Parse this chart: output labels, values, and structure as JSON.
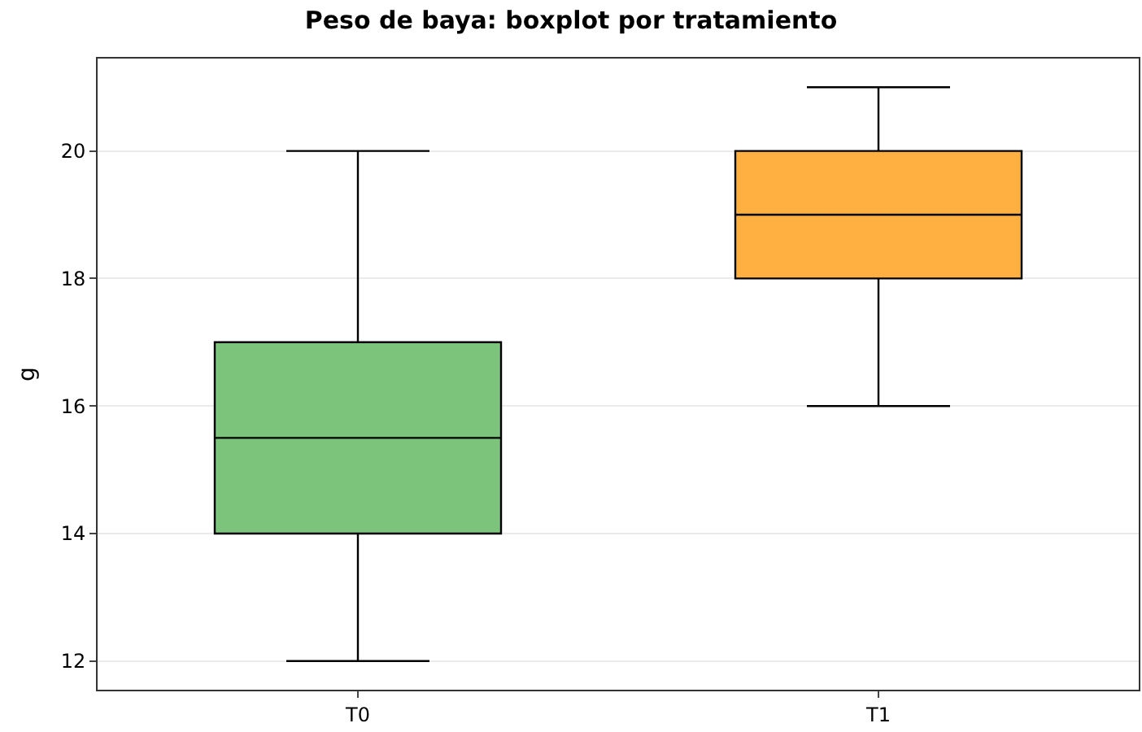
{
  "chart_data": {
    "type": "box",
    "title": "Peso de baya: boxplot por tratamiento",
    "ylabel": "g",
    "categories": [
      "T0",
      "T1"
    ],
    "boxes": [
      {
        "low": 12,
        "q1": 14,
        "median": 15.5,
        "q3": 17,
        "high": 20
      },
      {
        "low": 16,
        "q1": 18,
        "median": 19,
        "q3": 20,
        "high": 21
      }
    ],
    "colors": [
      "#7cc47c",
      "#ffb040"
    ],
    "ylim": [
      11.55,
      21.45
    ],
    "yticks": [
      12,
      14,
      16,
      18,
      20
    ],
    "grid": "y"
  }
}
